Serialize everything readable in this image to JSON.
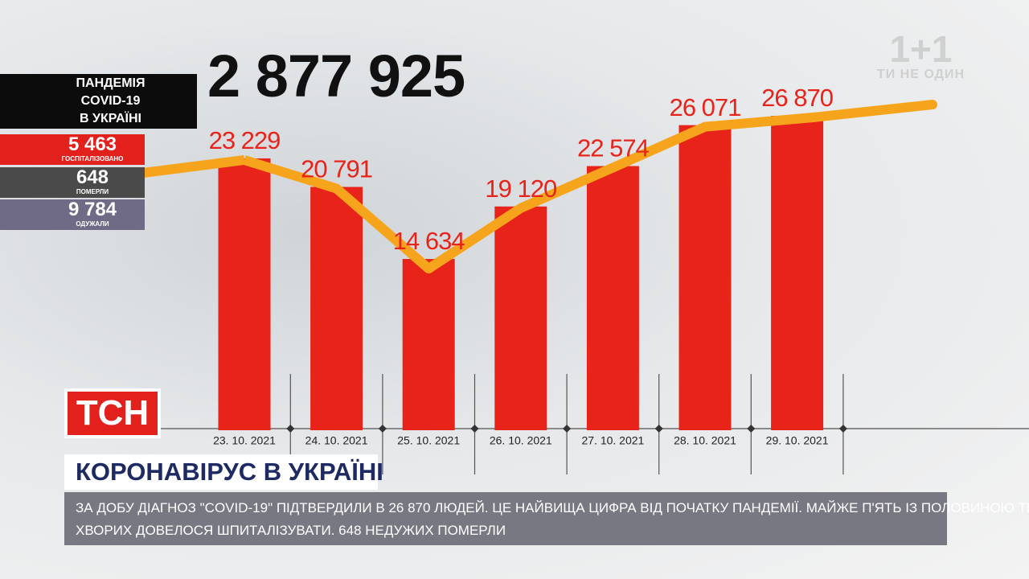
{
  "logo": {
    "text": "1+1",
    "tagline": "ТИ НЕ ОДИН"
  },
  "total": "2 877 925",
  "panel": {
    "title": [
      "ПАНДЕМІЯ",
      "COVID-19",
      "В УКРАЇНІ"
    ],
    "stats": [
      {
        "value": "5 463",
        "label": "ГОСПІТАЛІЗОВАНО",
        "color": "#e3211c"
      },
      {
        "value": "648",
        "label": "ПОМЕРЛИ",
        "color": "#4a4a4a"
      },
      {
        "value": "9 784",
        "label": "ОДУЖАЛИ",
        "color": "#6f6a86"
      }
    ]
  },
  "chart_data": {
    "type": "bar",
    "categories": [
      "23. 10. 2021",
      "24. 10. 2021",
      "25. 10. 2021",
      "26. 10. 2021",
      "27. 10. 2021",
      "28. 10. 2021",
      "29. 10. 2021"
    ],
    "values": [
      23229,
      20791,
      14634,
      19120,
      22574,
      26071,
      26870
    ],
    "value_labels": [
      "23 229",
      "20 791",
      "14 634",
      "19 120",
      "22 574",
      "26 071",
      "26 870"
    ],
    "color": "#e8231a",
    "line_color": "#f7a41d"
  },
  "channel": "ТСН",
  "headline": "КОРОНАВІРУС В УКРАЇНІ",
  "ticker": [
    "ЗА ДОБУ ДІАГНОЗ \"COVID-19\" ПІДТВЕРДИЛИ В 26 870 ЛЮДЕЙ. ЦЕ НАЙВИЩА ЦИФРА ВІД ПОЧАТКУ ПАНДЕМІЇ. МАЙЖЕ П'ЯТЬ ІЗ ПОЛОВИНОЮ ТИСЯЧ",
    "ХВОРИХ ДОВЕЛОСЯ ШПИТАЛІЗУВАТИ. 648 НЕДУЖИХ ПОМЕРЛИ"
  ]
}
